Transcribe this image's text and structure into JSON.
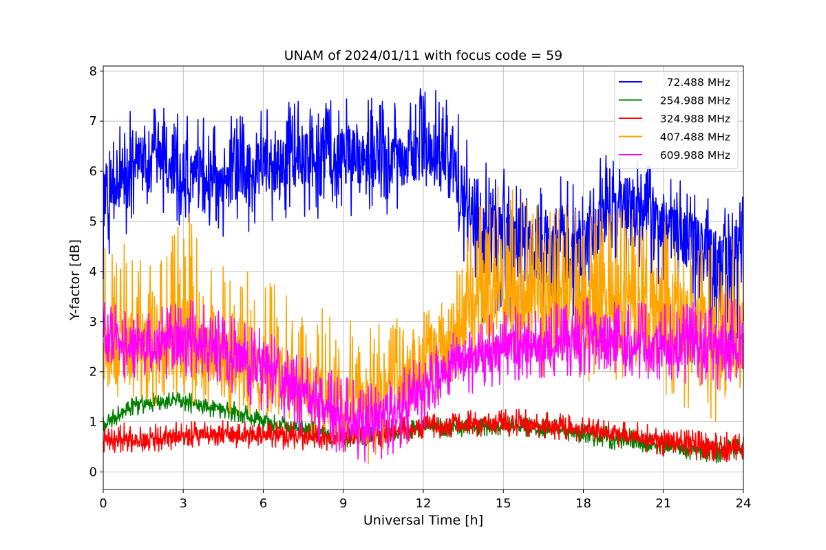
{
  "chart_data": {
    "type": "line",
    "title": "UNAM of 2024/01/11 with focus code = 59",
    "xlabel": "Universal Time [h]",
    "ylabel": "Y-factor [dB]",
    "xlim": [
      0,
      24
    ],
    "ylim": [
      -0.35,
      8.1
    ],
    "xticks": [
      0,
      3,
      6,
      9,
      12,
      15,
      18,
      21,
      24
    ],
    "yticks": [
      0,
      1,
      2,
      3,
      4,
      5,
      6,
      7,
      8
    ],
    "grid": true,
    "legend_position": "top-right",
    "x": [
      0,
      1,
      2,
      3,
      4,
      5,
      6,
      7,
      8,
      9,
      10,
      11,
      12,
      13,
      14,
      15,
      16,
      17,
      18,
      19,
      20,
      21,
      22,
      23,
      24
    ],
    "series": [
      {
        "name": "72.488 MHz",
        "color": "#0000ff",
        "values": [
          5.4,
          6.0,
          6.1,
          6.0,
          5.9,
          5.9,
          6.1,
          6.2,
          6.2,
          6.3,
          6.3,
          6.2,
          6.4,
          6.3,
          4.8,
          4.6,
          4.5,
          4.4,
          4.5,
          5.4,
          5.3,
          5.0,
          4.6,
          4.3,
          4.5
        ],
        "min": [
          3.7,
          4.9,
          5.0,
          4.9,
          4.7,
          4.7,
          4.9,
          5.1,
          5.0,
          5.1,
          5.1,
          5.0,
          5.3,
          5.3,
          3.0,
          2.8,
          2.8,
          2.7,
          2.8,
          4.0,
          3.9,
          3.6,
          3.2,
          2.4,
          2.0
        ],
        "max": [
          6.4,
          7.2,
          7.3,
          7.2,
          7.1,
          7.1,
          7.3,
          7.4,
          7.4,
          7.5,
          7.5,
          7.4,
          7.7,
          7.6,
          6.3,
          6.1,
          5.9,
          5.9,
          6.0,
          6.4,
          6.3,
          6.0,
          5.7,
          5.5,
          5.5
        ]
      },
      {
        "name": "254.988 MHz",
        "color": "#008000",
        "values": [
          0.9,
          1.3,
          1.4,
          1.4,
          1.3,
          1.2,
          1.0,
          0.9,
          0.8,
          0.7,
          0.7,
          0.8,
          0.9,
          0.9,
          0.9,
          0.9,
          0.9,
          0.85,
          0.75,
          0.65,
          0.6,
          0.5,
          0.45,
          0.4,
          0.5
        ],
        "min": [
          0.7,
          1.1,
          1.2,
          1.2,
          1.1,
          1.0,
          0.8,
          0.7,
          0.6,
          0.5,
          0.5,
          0.6,
          0.7,
          0.7,
          0.7,
          0.7,
          0.7,
          0.65,
          0.55,
          0.45,
          0.4,
          0.3,
          0.25,
          0.15,
          0.3
        ],
        "max": [
          1.1,
          1.5,
          1.6,
          1.6,
          1.5,
          1.4,
          1.2,
          1.1,
          1.0,
          0.9,
          0.9,
          1.0,
          1.1,
          1.1,
          1.1,
          1.1,
          1.1,
          1.05,
          1.0,
          0.9,
          0.85,
          0.75,
          0.7,
          0.6,
          0.7
        ]
      },
      {
        "name": "324.988 MHz",
        "color": "#ff0000",
        "values": [
          0.6,
          0.65,
          0.65,
          0.7,
          0.75,
          0.7,
          0.7,
          0.7,
          0.65,
          0.65,
          0.7,
          0.8,
          0.9,
          0.9,
          0.95,
          0.95,
          0.95,
          0.9,
          0.85,
          0.75,
          0.7,
          0.6,
          0.55,
          0.5,
          0.5
        ],
        "min": [
          0.35,
          0.4,
          0.4,
          0.45,
          0.5,
          0.45,
          0.45,
          0.45,
          0.4,
          0.4,
          0.45,
          0.55,
          0.65,
          0.65,
          0.7,
          0.7,
          0.7,
          0.65,
          0.6,
          0.5,
          0.45,
          0.3,
          0.25,
          0.2,
          0.2
        ],
        "max": [
          0.9,
          1.0,
          1.0,
          1.0,
          1.05,
          1.0,
          1.0,
          1.0,
          0.95,
          0.95,
          1.0,
          1.1,
          1.2,
          1.2,
          1.25,
          1.25,
          1.25,
          1.2,
          1.15,
          1.05,
          1.0,
          0.9,
          0.85,
          0.8,
          0.8
        ]
      },
      {
        "name": "407.488 MHz",
        "color": "#ffa500",
        "values": [
          2.3,
          2.5,
          2.4,
          2.6,
          2.3,
          2.1,
          2.0,
          1.8,
          1.5,
          1.2,
          1.4,
          1.7,
          2.1,
          2.4,
          3.5,
          3.6,
          3.5,
          3.4,
          3.3,
          3.4,
          3.3,
          3.1,
          2.9,
          2.7,
          2.6
        ],
        "min": [
          1.4,
          1.5,
          1.3,
          1.4,
          1.3,
          1.1,
          1.1,
          1.0,
          0.7,
          0.5,
          0.0,
          0.9,
          1.2,
          1.6,
          2.0,
          2.0,
          1.9,
          1.8,
          1.7,
          1.8,
          1.7,
          1.5,
          1.2,
          0.9,
          1.0
        ],
        "max": [
          4.5,
          4.6,
          4.0,
          5.5,
          4.2,
          4.1,
          4.0,
          3.5,
          3.3,
          3.1,
          2.9,
          3.1,
          3.3,
          3.5,
          5.6,
          5.9,
          5.5,
          5.5,
          5.2,
          5.3,
          5.2,
          5.0,
          4.9,
          4.7,
          4.6
        ]
      },
      {
        "name": "609.988 MHz",
        "color": "#ff00ff",
        "values": [
          2.5,
          2.6,
          2.5,
          2.6,
          2.5,
          2.3,
          2.1,
          1.7,
          1.3,
          0.9,
          0.9,
          1.3,
          1.6,
          2.1,
          2.3,
          2.4,
          2.5,
          2.5,
          2.6,
          2.6,
          2.5,
          2.5,
          2.4,
          2.5,
          2.5
        ],
        "min": [
          1.8,
          1.9,
          1.8,
          1.9,
          1.7,
          1.5,
          1.2,
          0.9,
          0.5,
          0.3,
          0.0,
          0.4,
          0.8,
          1.4,
          1.6,
          1.7,
          1.8,
          1.8,
          1.9,
          1.9,
          1.8,
          1.8,
          1.6,
          1.6,
          1.8
        ],
        "max": [
          3.5,
          3.2,
          3.3,
          3.5,
          3.3,
          3.1,
          2.9,
          2.5,
          2.2,
          1.9,
          1.8,
          2.1,
          2.4,
          2.9,
          3.2,
          3.3,
          3.4,
          3.4,
          3.5,
          3.5,
          3.4,
          3.4,
          3.4,
          3.6,
          3.5
        ]
      }
    ]
  }
}
